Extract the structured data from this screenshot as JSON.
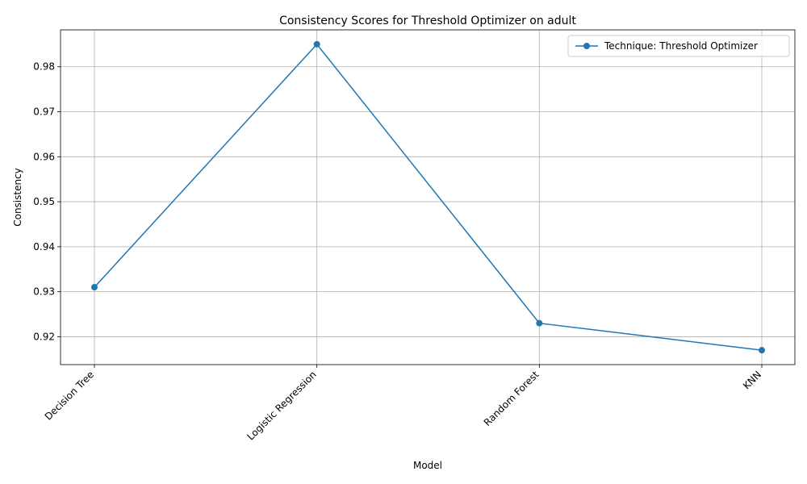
{
  "chart_data": {
    "type": "line",
    "title": "Consistency Scores for Threshold Optimizer on adult",
    "xlabel": "Model",
    "ylabel": "Consistency",
    "categories": [
      "Decision Tree",
      "Logistic Regression",
      "Random Forest",
      "KNN"
    ],
    "series": [
      {
        "name": "Technique: Threshold Optimizer",
        "values": [
          0.931,
          0.985,
          0.923,
          0.917
        ],
        "color": "#1f77b4",
        "marker": "circle"
      }
    ],
    "ylim": [
      0.9138,
      0.9882
    ],
    "yticks": [
      "0.92",
      "0.93",
      "0.94",
      "0.95",
      "0.96",
      "0.97",
      "0.98"
    ],
    "grid": true,
    "legend_position": "top-right",
    "x_tick_rotation": 45
  }
}
